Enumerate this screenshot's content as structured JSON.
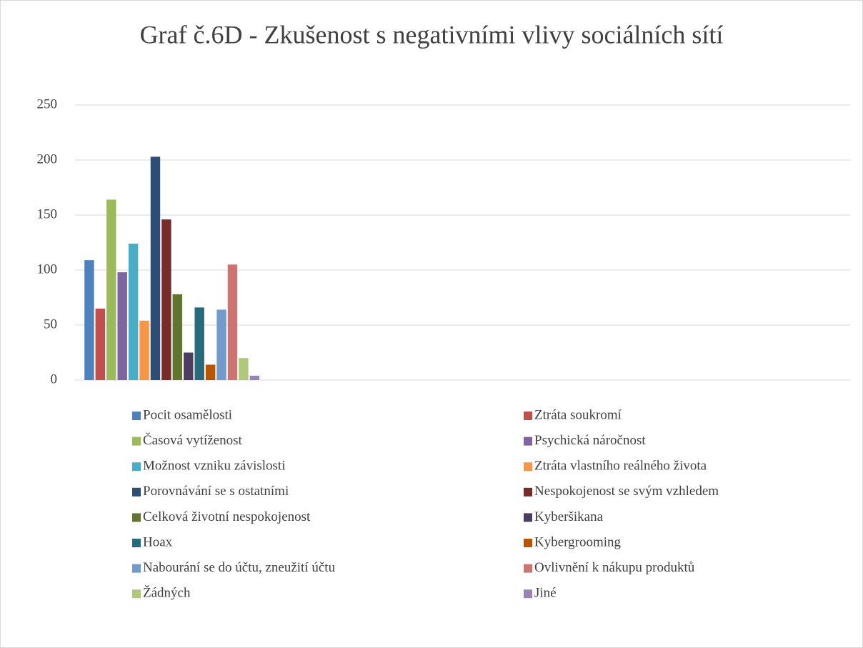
{
  "chart_data": {
    "type": "bar",
    "title": "Graf č.6D - Zkušenost s negativními vlivy sociálních sítí",
    "categories": [
      null,
      null,
      null,
      null
    ],
    "series": [
      {
        "name": "Pocit osamělosti",
        "color": "#4f81bd",
        "values": [
          109,
          null,
          null,
          null
        ]
      },
      {
        "name": "Ztráta soukromí",
        "color": "#c0504d",
        "values": [
          65,
          null,
          null,
          null
        ]
      },
      {
        "name": "Časová vytíženost",
        "color": "#9bbb59",
        "values": [
          164,
          null,
          null,
          null
        ]
      },
      {
        "name": "Psychická náročnost",
        "color": "#8064a2",
        "values": [
          98,
          null,
          null,
          null
        ]
      },
      {
        "name": "Možnost vzniku závislosti",
        "color": "#4bacc6",
        "values": [
          124,
          null,
          null,
          null
        ]
      },
      {
        "name": "Ztráta vlastního reálného života",
        "color": "#f79646",
        "values": [
          54,
          null,
          null,
          null
        ]
      },
      {
        "name": "Porovnávání se s ostatními",
        "color": "#2c4d75",
        "values": [
          203,
          null,
          null,
          null
        ]
      },
      {
        "name": "Nespokojenost se svým vzhledem",
        "color": "#772c2a",
        "values": [
          146,
          null,
          null,
          null
        ]
      },
      {
        "name": "Celková životní nespokojenost",
        "color": "#5f7530",
        "values": [
          78,
          null,
          null,
          null
        ]
      },
      {
        "name": "Kyberšikana",
        "color": "#4d3b62",
        "values": [
          25,
          null,
          null,
          null
        ]
      },
      {
        "name": "Hoax",
        "color": "#276a7c",
        "values": [
          66,
          null,
          null,
          null
        ]
      },
      {
        "name": "Kybergrooming",
        "color": "#b65708",
        "values": [
          14,
          null,
          null,
          null
        ]
      },
      {
        "name": "Nabourání se do účtu, zneužití účtu",
        "color": "#729aca",
        "values": [
          64,
          null,
          null,
          null
        ]
      },
      {
        "name": "Ovlivnění k nákupu produktů",
        "color": "#cd7371",
        "values": [
          105,
          null,
          null,
          null
        ]
      },
      {
        "name": "Žádných",
        "color": "#afc97a",
        "values": [
          20,
          null,
          null,
          null
        ]
      },
      {
        "name": "Jiné",
        "color": "#9983b5",
        "values": [
          4,
          null,
          null,
          null
        ]
      }
    ],
    "ylim": [
      0,
      250
    ],
    "yticks": [
      0,
      50,
      100,
      150,
      200,
      250
    ],
    "grid": true,
    "legend": "bottom"
  }
}
